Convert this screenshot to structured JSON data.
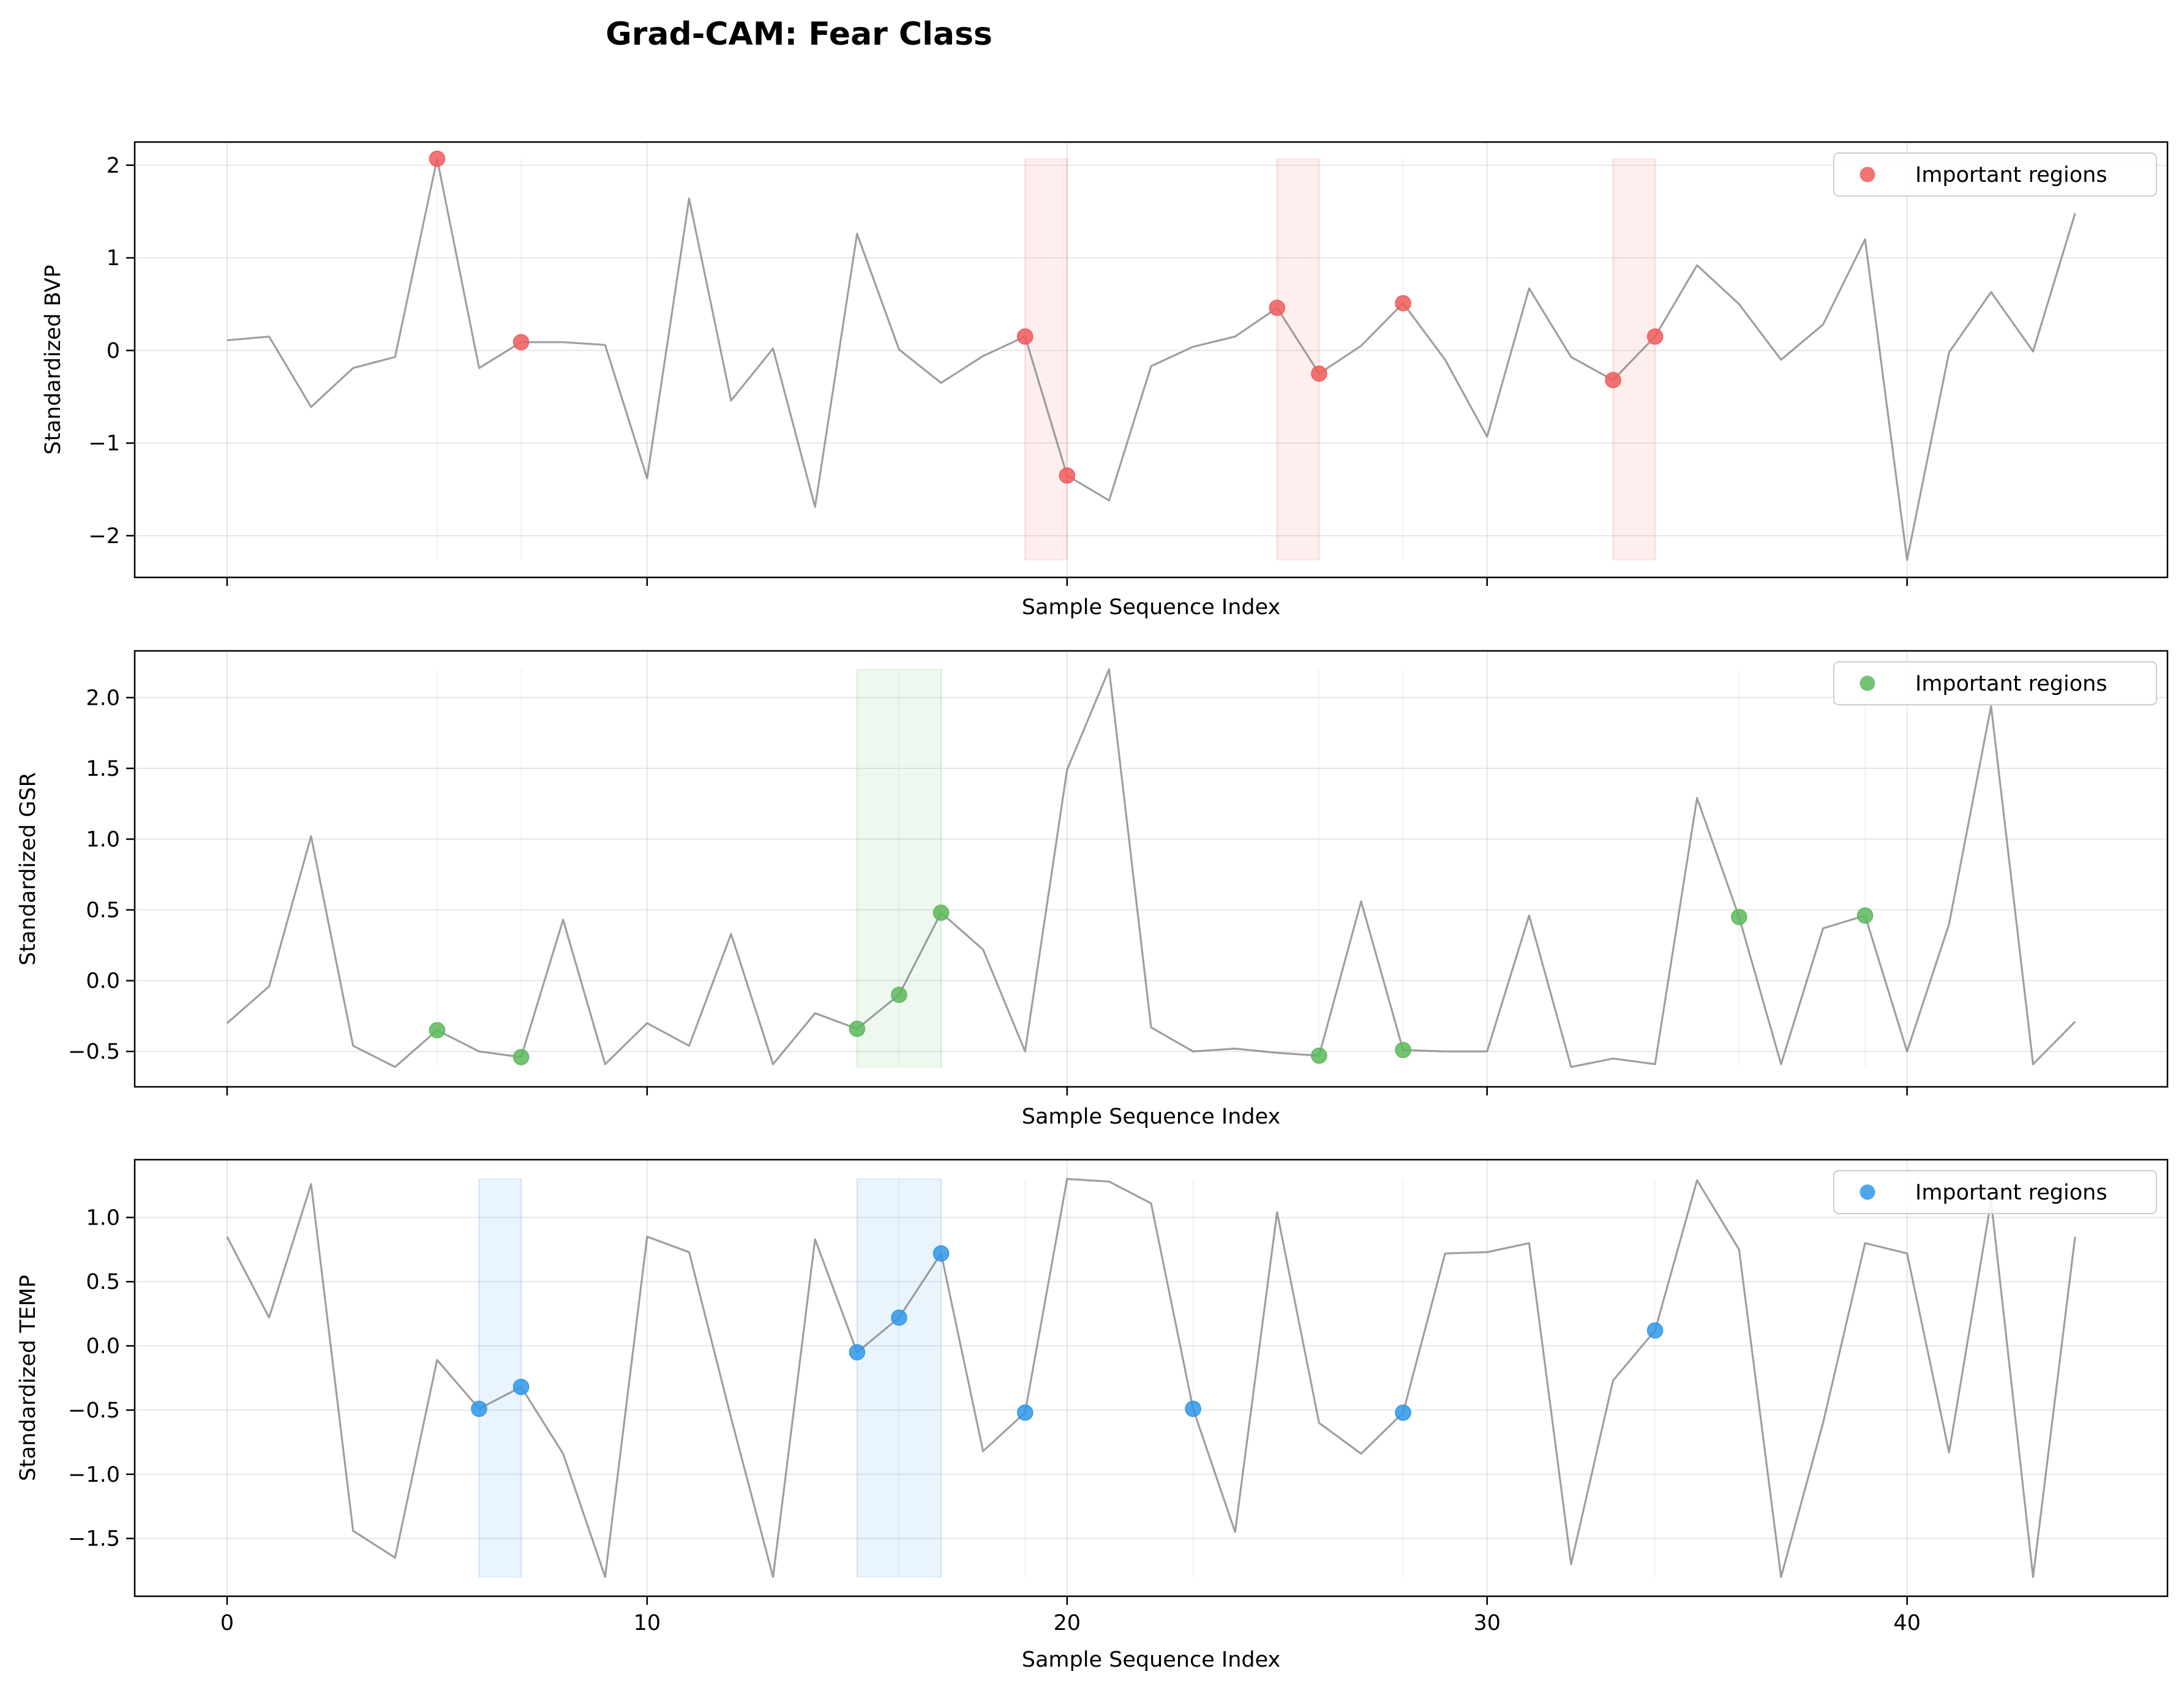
{
  "title": "Grad-CAM: Fear Class",
  "chart_data": [
    {
      "type": "line",
      "xlabel": "Sample Sequence Index",
      "ylabel": "Standardized BVP",
      "xlim": [
        -2.2,
        46.2
      ],
      "ylim": [
        -2.45,
        2.25
      ],
      "xticks": [
        0,
        10,
        20,
        30,
        40
      ],
      "xticklabels": [
        "",
        "",
        "",
        "",
        ""
      ],
      "yticks": [
        -2,
        -1,
        0,
        1,
        2
      ],
      "yticklabels": [
        "−2",
        "−1",
        "0",
        "1",
        "2"
      ],
      "grid": true,
      "legend": {
        "label": "Important regions",
        "placement": "upper right"
      },
      "color": "#f15b5b",
      "series": [
        {
          "x_start": 0,
          "values": [
            0.11,
            0.15,
            -0.61,
            -0.19,
            -0.07,
            2.07,
            -0.19,
            0.09,
            0.09,
            0.06,
            -1.38,
            1.64,
            -0.54,
            0.02,
            -1.69,
            1.26,
            0.01,
            -0.35,
            -0.06,
            0.15,
            -1.35,
            -1.62,
            -0.17,
            0.04,
            0.15,
            0.46,
            -0.25,
            0.05,
            0.51,
            -0.1,
            -0.93,
            0.67,
            -0.07,
            -0.32,
            0.15,
            0.92,
            0.5,
            -0.1,
            0.28,
            1.2,
            -2.26,
            -0.02,
            0.63,
            -0.01,
            1.48
          ]
        }
      ],
      "important_points": [
        5,
        7,
        19,
        20,
        25,
        26,
        28,
        33,
        34
      ],
      "highlight_regions": [
        [
          19,
          20
        ],
        [
          25,
          26
        ],
        [
          33,
          34
        ]
      ],
      "highlight_lines": [
        5,
        7,
        28
      ]
    },
    {
      "type": "line",
      "xlabel": "Sample Sequence Index",
      "ylabel": "Standardized GSR",
      "xlim": [
        -2.2,
        46.2
      ],
      "ylim": [
        -0.75,
        2.33
      ],
      "xticks": [
        0,
        10,
        20,
        30,
        40
      ],
      "xticklabels": [
        "",
        "",
        "",
        "",
        ""
      ],
      "yticks": [
        -0.5,
        0.0,
        0.5,
        1.0,
        1.5,
        2.0
      ],
      "yticklabels": [
        "−0.5",
        "0.0",
        "0.5",
        "1.0",
        "1.5",
        "2.0"
      ],
      "grid": true,
      "legend": {
        "label": "Important regions",
        "placement": "upper right"
      },
      "color": "#5cb85c",
      "series": [
        {
          "x_start": 0,
          "values": [
            -0.3,
            -0.04,
            1.02,
            -0.46,
            -0.61,
            -0.35,
            -0.5,
            -0.54,
            0.43,
            -0.59,
            -0.3,
            -0.46,
            0.33,
            -0.59,
            -0.23,
            -0.34,
            -0.1,
            0.48,
            0.22,
            -0.5,
            1.49,
            2.2,
            -0.33,
            -0.5,
            -0.48,
            -0.51,
            -0.53,
            0.56,
            -0.49,
            -0.5,
            -0.5,
            0.46,
            -0.61,
            -0.55,
            -0.59,
            1.29,
            0.45,
            -0.59,
            0.37,
            0.46,
            -0.5,
            0.4,
            1.94,
            -0.59,
            -0.29
          ]
        }
      ],
      "important_points": [
        5,
        7,
        15,
        16,
        17,
        26,
        28,
        36,
        39
      ],
      "highlight_regions": [
        [
          15,
          17
        ]
      ],
      "highlight_lines": [
        5,
        7,
        26,
        28,
        36,
        39
      ]
    },
    {
      "type": "line",
      "xlabel": "Sample Sequence Index",
      "ylabel": "Standardized TEMP",
      "xlim": [
        -2.2,
        46.2
      ],
      "ylim": [
        -1.95,
        1.45
      ],
      "xticks": [
        0,
        10,
        20,
        30,
        40
      ],
      "xticklabels": [
        "0",
        "10",
        "20",
        "30",
        "40"
      ],
      "yticks": [
        -1.5,
        -1.0,
        -0.5,
        0.0,
        0.5,
        1.0
      ],
      "yticklabels": [
        "−1.5",
        "−1.0",
        "−0.5",
        "0.0",
        "0.5",
        "1.0"
      ],
      "grid": true,
      "legend": {
        "label": "Important regions",
        "placement": "upper right"
      },
      "color": "#2f96e8",
      "series": [
        {
          "x_start": 0,
          "values": [
            0.85,
            0.22,
            1.26,
            -1.44,
            -1.65,
            -0.11,
            -0.49,
            -0.32,
            -0.84,
            -1.8,
            0.85,
            0.73,
            -0.56,
            -1.8,
            0.83,
            -0.05,
            0.22,
            0.72,
            -0.82,
            -0.52,
            1.3,
            1.28,
            1.11,
            -0.49,
            -1.45,
            1.04,
            -0.6,
            -0.84,
            -0.52,
            0.72,
            0.73,
            0.8,
            -1.7,
            -0.27,
            0.12,
            1.29,
            0.75,
            -1.8,
            -0.6,
            0.8,
            0.72,
            -0.83,
            1.13,
            -1.8,
            0.85
          ]
        }
      ],
      "important_points": [
        6,
        7,
        15,
        16,
        17,
        19,
        23,
        28,
        34
      ],
      "highlight_regions": [
        [
          6,
          7
        ],
        [
          15,
          17
        ]
      ],
      "highlight_lines": [
        19,
        23,
        28,
        34
      ]
    }
  ]
}
